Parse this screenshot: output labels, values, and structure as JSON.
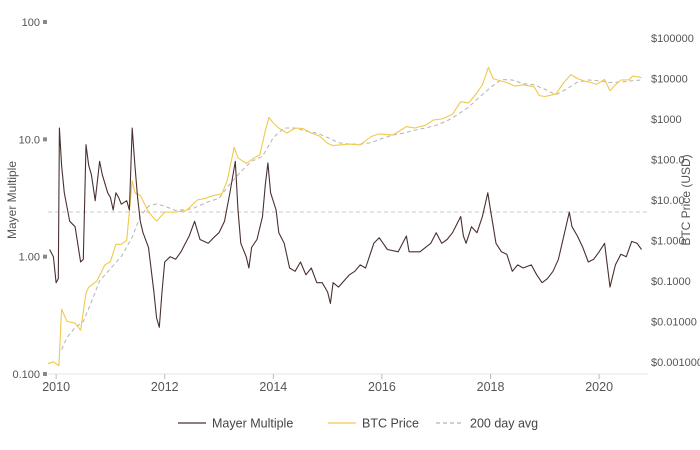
{
  "chart_data": {
    "type": "line",
    "title": "",
    "xlabel": "",
    "x_range": [
      2009.85,
      2020.9
    ],
    "x_ticks": [
      2010,
      2012,
      2014,
      2016,
      2018,
      2020
    ],
    "y_left": {
      "label": "Mayer Multiple",
      "scale": "log",
      "range": [
        0.1,
        100
      ],
      "ticks": [
        {
          "value": 100,
          "label": "100"
        },
        {
          "value": 10,
          "label": "10.0"
        },
        {
          "value": 1,
          "label": "1.00"
        },
        {
          "value": 0.1,
          "label": "0.100"
        }
      ]
    },
    "y_right": {
      "label": "BTC Price (USD)",
      "scale": "log",
      "range": [
        0.0005,
        250000
      ],
      "ticks": [
        {
          "value": 100000,
          "label": "$100000"
        },
        {
          "value": 10000,
          "label": "$10000"
        },
        {
          "value": 1000,
          "label": "$1000"
        },
        {
          "value": 100,
          "label": "$100.0"
        },
        {
          "value": 10,
          "label": "$10.00"
        },
        {
          "value": 1,
          "label": "$1.000"
        },
        {
          "value": 0.1,
          "label": "$0.1000"
        },
        {
          "value": 0.01,
          "label": "$0.01000"
        },
        {
          "value": 0.001,
          "label": "$0.001000"
        }
      ]
    },
    "reference_line": {
      "axis": "left",
      "value": 2.4
    },
    "series": [
      {
        "name": "Mayer Multiple",
        "axis": "left",
        "color": "#4a3030",
        "style": "solid",
        "points": [
          [
            2009.88,
            1.15
          ],
          [
            2009.95,
            1.0
          ],
          [
            2010.0,
            0.6
          ],
          [
            2010.04,
            0.65
          ],
          [
            2010.06,
            12.5
          ],
          [
            2010.1,
            6
          ],
          [
            2010.15,
            3.5
          ],
          [
            2010.25,
            2
          ],
          [
            2010.35,
            1.8
          ],
          [
            2010.45,
            0.9
          ],
          [
            2010.5,
            0.95
          ],
          [
            2010.55,
            9
          ],
          [
            2010.6,
            6
          ],
          [
            2010.65,
            5
          ],
          [
            2010.72,
            3
          ],
          [
            2010.8,
            6.5
          ],
          [
            2010.85,
            5
          ],
          [
            2010.95,
            3.5
          ],
          [
            2011.0,
            3.2
          ],
          [
            2011.05,
            2.5
          ],
          [
            2011.1,
            3.5
          ],
          [
            2011.15,
            3.2
          ],
          [
            2011.2,
            2.8
          ],
          [
            2011.3,
            3.0
          ],
          [
            2011.35,
            2.5
          ],
          [
            2011.4,
            12.5
          ],
          [
            2011.45,
            6
          ],
          [
            2011.5,
            3.2
          ],
          [
            2011.55,
            2.0
          ],
          [
            2011.6,
            1.6
          ],
          [
            2011.7,
            1.2
          ],
          [
            2011.8,
            0.5
          ],
          [
            2011.85,
            0.3
          ],
          [
            2011.9,
            0.25
          ],
          [
            2011.95,
            0.5
          ],
          [
            2012.0,
            0.9
          ],
          [
            2012.1,
            1.0
          ],
          [
            2012.2,
            0.95
          ],
          [
            2012.3,
            1.1
          ],
          [
            2012.45,
            1.5
          ],
          [
            2012.55,
            2.0
          ],
          [
            2012.65,
            1.4
          ],
          [
            2012.8,
            1.3
          ],
          [
            2012.9,
            1.45
          ],
          [
            2013.0,
            1.6
          ],
          [
            2013.1,
            2.0
          ],
          [
            2013.2,
            3.5
          ],
          [
            2013.3,
            6.5
          ],
          [
            2013.35,
            2.5
          ],
          [
            2013.4,
            1.3
          ],
          [
            2013.5,
            1.0
          ],
          [
            2013.55,
            0.8
          ],
          [
            2013.6,
            1.2
          ],
          [
            2013.7,
            1.4
          ],
          [
            2013.8,
            2.2
          ],
          [
            2013.85,
            4.0
          ],
          [
            2013.9,
            6.3
          ],
          [
            2013.95,
            3.5
          ],
          [
            2014.05,
            2.5
          ],
          [
            2014.1,
            1.6
          ],
          [
            2014.2,
            1.3
          ],
          [
            2014.3,
            0.8
          ],
          [
            2014.4,
            0.75
          ],
          [
            2014.5,
            0.9
          ],
          [
            2014.6,
            0.7
          ],
          [
            2014.7,
            0.8
          ],
          [
            2014.8,
            0.6
          ],
          [
            2014.9,
            0.6
          ],
          [
            2015.0,
            0.5
          ],
          [
            2015.05,
            0.4
          ],
          [
            2015.1,
            0.6
          ],
          [
            2015.2,
            0.55
          ],
          [
            2015.4,
            0.7
          ],
          [
            2015.5,
            0.75
          ],
          [
            2015.6,
            0.85
          ],
          [
            2015.7,
            0.8
          ],
          [
            2015.85,
            1.3
          ],
          [
            2015.95,
            1.45
          ],
          [
            2016.1,
            1.15
          ],
          [
            2016.3,
            1.1
          ],
          [
            2016.45,
            1.5
          ],
          [
            2016.5,
            1.1
          ],
          [
            2016.7,
            1.1
          ],
          [
            2016.9,
            1.3
          ],
          [
            2017.0,
            1.6
          ],
          [
            2017.1,
            1.3
          ],
          [
            2017.2,
            1.4
          ],
          [
            2017.3,
            1.6
          ],
          [
            2017.45,
            2.2
          ],
          [
            2017.5,
            1.5
          ],
          [
            2017.55,
            1.3
          ],
          [
            2017.65,
            1.8
          ],
          [
            2017.75,
            1.6
          ],
          [
            2017.85,
            2.2
          ],
          [
            2017.95,
            3.5
          ],
          [
            2018.0,
            2.5
          ],
          [
            2018.1,
            1.3
          ],
          [
            2018.2,
            1.1
          ],
          [
            2018.3,
            1.05
          ],
          [
            2018.4,
            0.75
          ],
          [
            2018.5,
            0.85
          ],
          [
            2018.6,
            0.8
          ],
          [
            2018.75,
            0.85
          ],
          [
            2018.85,
            0.7
          ],
          [
            2018.95,
            0.6
          ],
          [
            2019.05,
            0.65
          ],
          [
            2019.15,
            0.75
          ],
          [
            2019.25,
            0.95
          ],
          [
            2019.35,
            1.5
          ],
          [
            2019.45,
            2.4
          ],
          [
            2019.5,
            1.8
          ],
          [
            2019.6,
            1.5
          ],
          [
            2019.7,
            1.2
          ],
          [
            2019.8,
            0.9
          ],
          [
            2019.9,
            0.95
          ],
          [
            2020.0,
            1.1
          ],
          [
            2020.1,
            1.3
          ],
          [
            2020.2,
            0.55
          ],
          [
            2020.3,
            0.85
          ],
          [
            2020.4,
            1.05
          ],
          [
            2020.5,
            1.0
          ],
          [
            2020.6,
            1.35
          ],
          [
            2020.7,
            1.3
          ],
          [
            2020.78,
            1.15
          ]
        ]
      },
      {
        "name": "BTC Price",
        "axis": "right",
        "color": "#f0c94a",
        "style": "solid",
        "points": [
          [
            2009.85,
            0.0009
          ],
          [
            2009.95,
            0.001
          ],
          [
            2010.05,
            0.0008
          ],
          [
            2010.1,
            0.02
          ],
          [
            2010.2,
            0.01
          ],
          [
            2010.35,
            0.009
          ],
          [
            2010.45,
            0.006
          ],
          [
            2010.55,
            0.05
          ],
          [
            2010.6,
            0.07
          ],
          [
            2010.75,
            0.1
          ],
          [
            2010.9,
            0.25
          ],
          [
            2011.0,
            0.3
          ],
          [
            2011.1,
            0.8
          ],
          [
            2011.2,
            0.8
          ],
          [
            2011.3,
            1.0
          ],
          [
            2011.4,
            30
          ],
          [
            2011.45,
            15
          ],
          [
            2011.55,
            13
          ],
          [
            2011.7,
            5
          ],
          [
            2011.85,
            3
          ],
          [
            2012.0,
            5
          ],
          [
            2012.2,
            5
          ],
          [
            2012.4,
            5.5
          ],
          [
            2012.6,
            10
          ],
          [
            2012.75,
            11
          ],
          [
            2012.9,
            13
          ],
          [
            2013.05,
            14
          ],
          [
            2013.15,
            30
          ],
          [
            2013.28,
            200
          ],
          [
            2013.35,
            110
          ],
          [
            2013.5,
            80
          ],
          [
            2013.65,
            110
          ],
          [
            2013.75,
            130
          ],
          [
            2013.85,
            500
          ],
          [
            2013.92,
            1100
          ],
          [
            2014.0,
            800
          ],
          [
            2014.1,
            600
          ],
          [
            2014.25,
            450
          ],
          [
            2014.4,
            600
          ],
          [
            2014.55,
            580
          ],
          [
            2014.7,
            450
          ],
          [
            2014.85,
            380
          ],
          [
            2015.0,
            250
          ],
          [
            2015.1,
            220
          ],
          [
            2015.4,
            240
          ],
          [
            2015.6,
            230
          ],
          [
            2015.8,
            370
          ],
          [
            2015.95,
            430
          ],
          [
            2016.2,
            400
          ],
          [
            2016.45,
            650
          ],
          [
            2016.6,
            600
          ],
          [
            2016.8,
            700
          ],
          [
            2016.95,
            950
          ],
          [
            2017.1,
            1000
          ],
          [
            2017.3,
            1300
          ],
          [
            2017.45,
            2700
          ],
          [
            2017.6,
            2500
          ],
          [
            2017.75,
            4500
          ],
          [
            2017.85,
            7000
          ],
          [
            2017.96,
            19000
          ],
          [
            2018.05,
            10000
          ],
          [
            2018.15,
            9000
          ],
          [
            2018.3,
            8000
          ],
          [
            2018.45,
            6500
          ],
          [
            2018.6,
            7000
          ],
          [
            2018.8,
            6300
          ],
          [
            2018.9,
            3800
          ],
          [
            2019.0,
            3600
          ],
          [
            2019.2,
            4100
          ],
          [
            2019.35,
            8000
          ],
          [
            2019.48,
            12500
          ],
          [
            2019.6,
            10000
          ],
          [
            2019.75,
            8500
          ],
          [
            2019.85,
            8000
          ],
          [
            2019.95,
            7200
          ],
          [
            2020.1,
            9500
          ],
          [
            2020.2,
            5000
          ],
          [
            2020.3,
            7000
          ],
          [
            2020.4,
            9200
          ],
          [
            2020.55,
            9300
          ],
          [
            2020.62,
            11500
          ],
          [
            2020.72,
            11000
          ],
          [
            2020.78,
            10500
          ]
        ]
      },
      {
        "name": "200 day avg",
        "axis": "right",
        "color": "#b3b3b3",
        "style": "dashed",
        "points": [
          [
            2010.1,
            0.002
          ],
          [
            2010.2,
            0.004
          ],
          [
            2010.35,
            0.007
          ],
          [
            2010.5,
            0.01
          ],
          [
            2010.65,
            0.03
          ],
          [
            2010.8,
            0.1
          ],
          [
            2011.0,
            0.2
          ],
          [
            2011.2,
            0.4
          ],
          [
            2011.4,
            1.2
          ],
          [
            2011.55,
            4
          ],
          [
            2011.7,
            7
          ],
          [
            2011.85,
            8
          ],
          [
            2012.0,
            7
          ],
          [
            2012.2,
            5.5
          ],
          [
            2012.5,
            6
          ],
          [
            2012.8,
            9
          ],
          [
            2013.0,
            11
          ],
          [
            2013.2,
            25
          ],
          [
            2013.4,
            50
          ],
          [
            2013.6,
            90
          ],
          [
            2013.8,
            120
          ],
          [
            2014.0,
            350
          ],
          [
            2014.2,
            600
          ],
          [
            2014.4,
            600
          ],
          [
            2014.6,
            500
          ],
          [
            2014.8,
            450
          ],
          [
            2015.0,
            350
          ],
          [
            2015.2,
            260
          ],
          [
            2015.4,
            240
          ],
          [
            2015.6,
            240
          ],
          [
            2015.8,
            260
          ],
          [
            2016.0,
            330
          ],
          [
            2016.2,
            400
          ],
          [
            2016.4,
            450
          ],
          [
            2016.6,
            530
          ],
          [
            2016.8,
            600
          ],
          [
            2017.0,
            700
          ],
          [
            2017.2,
            900
          ],
          [
            2017.4,
            1300
          ],
          [
            2017.6,
            2000
          ],
          [
            2017.8,
            3500
          ],
          [
            2018.0,
            6000
          ],
          [
            2018.2,
            9500
          ],
          [
            2018.4,
            9200
          ],
          [
            2018.6,
            7500
          ],
          [
            2018.8,
            7000
          ],
          [
            2019.0,
            5500
          ],
          [
            2019.2,
            4000
          ],
          [
            2019.4,
            5500
          ],
          [
            2019.6,
            8200
          ],
          [
            2019.8,
            9200
          ],
          [
            2020.0,
            8800
          ],
          [
            2020.2,
            8000
          ],
          [
            2020.4,
            8200
          ],
          [
            2020.6,
            8800
          ],
          [
            2020.78,
            9200
          ]
        ]
      }
    ],
    "legend": {
      "position": "bottom",
      "items": [
        {
          "label": "Mayer Multiple",
          "color": "#4a3030",
          "style": "solid"
        },
        {
          "label": "BTC Price",
          "color": "#f0c94a",
          "style": "solid"
        },
        {
          "label": "200 day avg",
          "color": "#b3b3b3",
          "style": "dashed"
        }
      ]
    },
    "grid": false
  }
}
